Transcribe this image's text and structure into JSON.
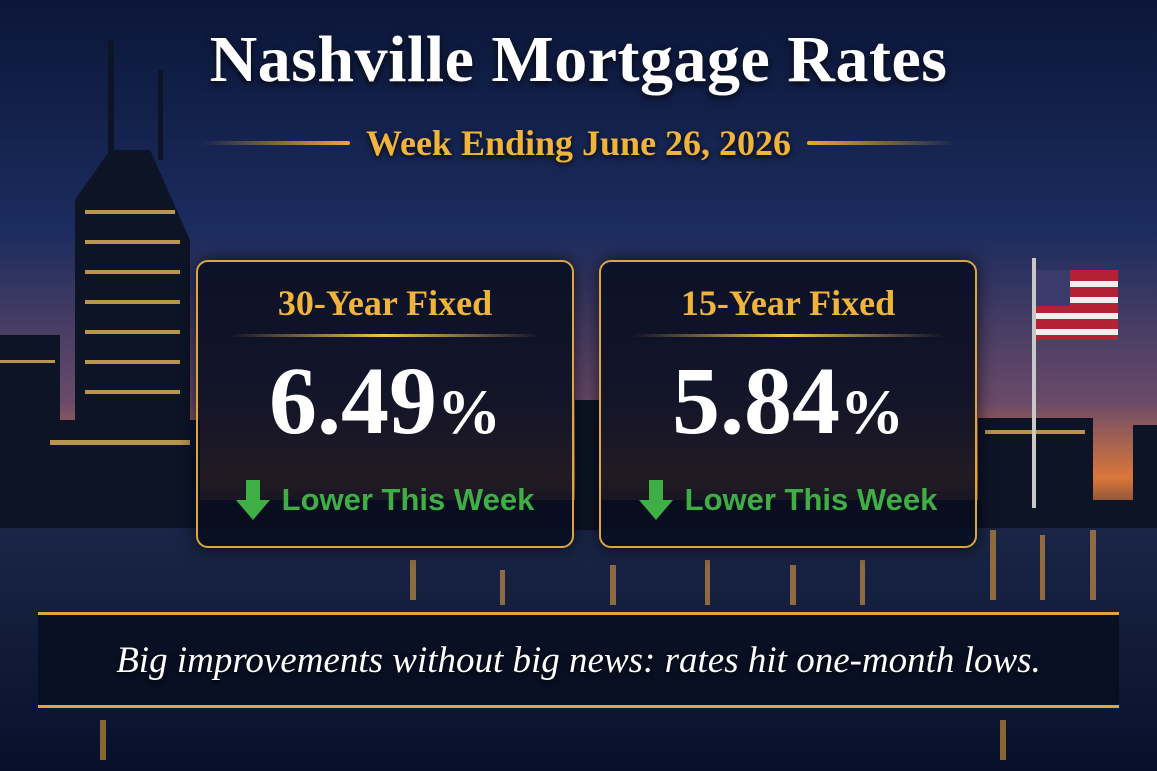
{
  "header": {
    "title": "Nashville Mortgage Rates",
    "subtitle": "Week Ending June 26, 2026"
  },
  "cards": [
    {
      "label": "30-Year Fixed",
      "rate": 6.49,
      "unit": "%",
      "trend": "Lower This Week"
    },
    {
      "label": "15-Year Fixed",
      "rate": 5.84,
      "unit": "%",
      "trend": "Lower This Week"
    }
  ],
  "footer": {
    "text": "Big improvements without big news: rates hit one-month lows."
  }
}
